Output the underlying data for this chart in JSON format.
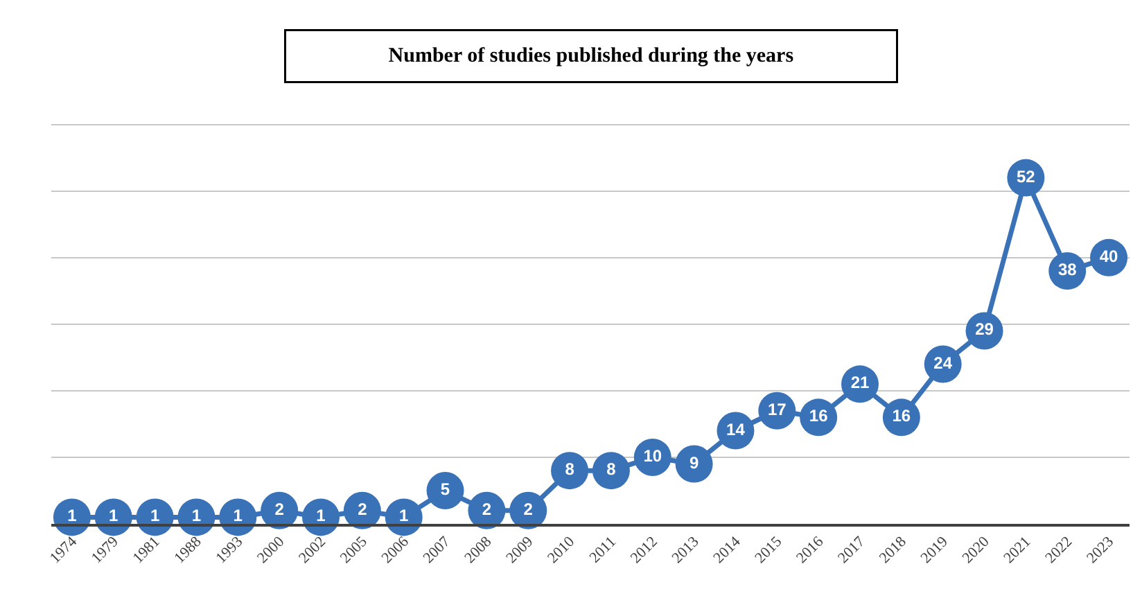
{
  "chart_data": {
    "type": "line",
    "title": "Number of studies published during the years",
    "categories": [
      "1974",
      "1979",
      "1981",
      "1988",
      "1993",
      "2000",
      "2002",
      "2005",
      "2006",
      "2007",
      "2008",
      "2009",
      "2010",
      "2011",
      "2012",
      "2013",
      "2014",
      "2015",
      "2016",
      "2017",
      "2018",
      "2019",
      "2020",
      "2021",
      "2022",
      "2023"
    ],
    "values": [
      1,
      1,
      1,
      1,
      1,
      2,
      1,
      2,
      1,
      5,
      2,
      2,
      8,
      8,
      10,
      9,
      14,
      17,
      16,
      21,
      16,
      24,
      29,
      52,
      38,
      40
    ],
    "color": "#3a72b8",
    "marker": "circle",
    "data_labels": true,
    "grid": "y",
    "tick_labels": "x",
    "yticks": [
      {
        "value": 0,
        "label": null
      },
      {
        "value": 10,
        "label": null
      },
      {
        "value": 20,
        "label": null
      },
      {
        "value": 30,
        "label": null
      },
      {
        "value": 40,
        "label": null
      },
      {
        "value": 50,
        "label": null
      },
      {
        "value": 60,
        "label": null
      }
    ]
  }
}
